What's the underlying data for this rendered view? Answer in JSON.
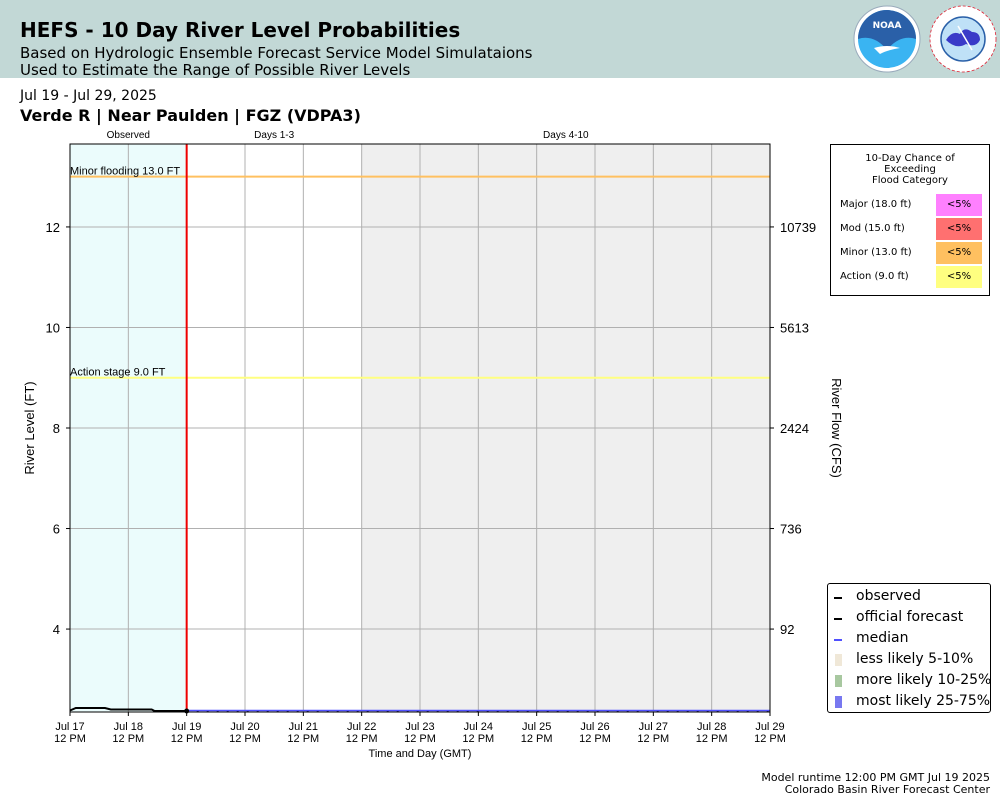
{
  "header": {
    "title": "HEFS - 10 Day River Level Probabilities",
    "subtitle_1": "Based on Hydrologic Ensemble Forecast Service Model Simulataions",
    "subtitle_2": "Used to Estimate the Range of Possible River Levels",
    "noaa_logo_text": "NOAA",
    "nws_logo_text": "NATIONAL WEATHER SERVICE"
  },
  "date_range": "Jul 19 - Jul 29, 2025",
  "location": "Verde R | Near Paulden | FGZ (VDPA3)",
  "chart_data": {
    "type": "line",
    "xlabel": "Time and Day (GMT)",
    "ylabel": "River Level (FT)",
    "y2label": "River Flow (CFS)",
    "ylim": [
      2.35,
      13.65
    ],
    "x_ticks": [
      {
        "line1": "Jul 17",
        "line2": "12 PM"
      },
      {
        "line1": "Jul 18",
        "line2": "12 PM"
      },
      {
        "line1": "Jul 19",
        "line2": "12 PM"
      },
      {
        "line1": "Jul 20",
        "line2": "12 PM"
      },
      {
        "line1": "Jul 21",
        "line2": "12 PM"
      },
      {
        "line1": "Jul 22",
        "line2": "12 PM"
      },
      {
        "line1": "Jul 23",
        "line2": "12 PM"
      },
      {
        "line1": "Jul 24",
        "line2": "12 PM"
      },
      {
        "line1": "Jul 25",
        "line2": "12 PM"
      },
      {
        "line1": "Jul 26",
        "line2": "12 PM"
      },
      {
        "line1": "Jul 27",
        "line2": "12 PM"
      },
      {
        "line1": "Jul 28",
        "line2": "12 PM"
      },
      {
        "line1": "Jul 29",
        "line2": "12 PM"
      }
    ],
    "y_ticks": [
      4,
      6,
      8,
      10,
      12
    ],
    "y2_ticks": [
      {
        "stage": 4,
        "label": "92"
      },
      {
        "stage": 6,
        "label": "736"
      },
      {
        "stage": 8,
        "label": "2424"
      },
      {
        "stage": 10,
        "label": "5613"
      },
      {
        "stage": 12,
        "label": "10739"
      }
    ],
    "periods": [
      {
        "label": "Observed",
        "from": 0,
        "to": 2,
        "color": "#ebfcfc"
      },
      {
        "label": "Days 1-3",
        "from": 2,
        "to": 5,
        "color": "#ffffff"
      },
      {
        "label": "Days 4-10",
        "from": 5,
        "to": 12,
        "color": "#efefef"
      }
    ],
    "current_time": 2,
    "thresholds": [
      {
        "label": "Minor flooding 13.0 FT",
        "value": 13.0,
        "color": "#ffc060"
      },
      {
        "label": "Action stage 9.0 FT",
        "value": 9.0,
        "color": "#ffff80"
      }
    ],
    "series": [
      {
        "name": "observed",
        "color": "#000000",
        "x": [
          0,
          0.1,
          0.6,
          0.7,
          1.4,
          1.45,
          2
        ],
        "y": [
          2.38,
          2.43,
          2.43,
          2.4,
          2.4,
          2.37,
          2.37
        ]
      },
      {
        "name": "official forecast",
        "color": "#000000",
        "x": [
          2,
          12
        ],
        "y": [
          2.37,
          2.37
        ]
      },
      {
        "name": "median",
        "color": "#5050ff",
        "x": [
          2,
          12
        ],
        "y": [
          2.38,
          2.38
        ]
      }
    ]
  },
  "probability_table": {
    "title_lines": [
      "10-Day Chance of",
      "Exceeding",
      "Flood Category"
    ],
    "rows": [
      {
        "label": "Major (18.0 ft)",
        "value": "<5%",
        "color": "#ff80ff"
      },
      {
        "label": "Mod (15.0 ft)",
        "value": "<5%",
        "color": "#ff7070"
      },
      {
        "label": "Minor (13.0 ft)",
        "value": "<5%",
        "color": "#ffc060"
      },
      {
        "label": "Action (9.0 ft)",
        "value": "<5%",
        "color": "#ffff80"
      }
    ]
  },
  "legend": {
    "items": [
      {
        "label": "observed",
        "color": "#000000"
      },
      {
        "label": "official forecast",
        "color": "#000000"
      },
      {
        "label": "median",
        "color": "#5050ff"
      },
      {
        "label": "less likely 5-10%",
        "color": "#f0e8d8"
      },
      {
        "label": "more likely 10-25%",
        "color": "#a8c8a0"
      },
      {
        "label": "most likely 25-75%",
        "color": "#7878f0"
      }
    ]
  },
  "footer": {
    "runtime": "Model runtime 12:00 PM GMT Jul 19 2025",
    "center": "Colorado Basin River Forecast Center"
  }
}
